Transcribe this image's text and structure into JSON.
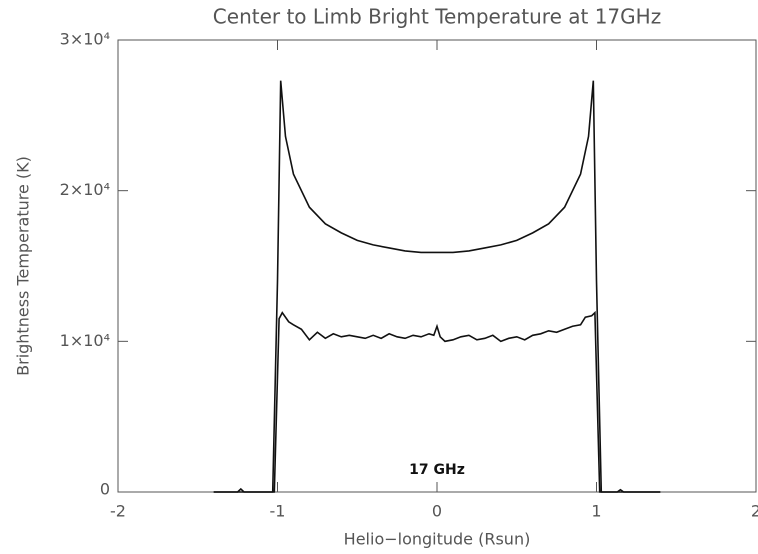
{
  "chart_data": {
    "type": "line",
    "title": "Center to Limb Bright Temperature at 17GHz",
    "xlabel": "Helio−longitude (Rsun)",
    "ylabel": "Brightness Temperature (K)",
    "annotation": "17 GHz",
    "xlim": [
      -2,
      2
    ],
    "ylim": [
      0,
      30000
    ],
    "xticks": [
      -2,
      -1,
      0,
      1,
      2
    ],
    "yticks": [
      0,
      {
        "value": 10000,
        "label": "1×10⁴"
      },
      {
        "value": 20000,
        "label": "2×10⁴"
      },
      {
        "value": 30000,
        "label": "3×10⁴"
      }
    ],
    "grid": false,
    "series": [
      {
        "color": "#111111",
        "x": [
          -1.4,
          -1.05,
          -1.03,
          -1.0,
          -0.98,
          -0.95,
          -0.9,
          -0.8,
          -0.7,
          -0.6,
          -0.5,
          -0.4,
          -0.3,
          -0.2,
          -0.1,
          0,
          0.1,
          0.2,
          0.3,
          0.4,
          0.5,
          0.6,
          0.7,
          0.8,
          0.9,
          0.95,
          0.98,
          1.0,
          1.03,
          1.05,
          1.4
        ],
        "values": [
          0,
          0,
          0,
          14000,
          27300,
          23600,
          21100,
          18900,
          17800,
          17200,
          16700,
          16400,
          16200,
          16000,
          15900,
          15900,
          15900,
          16000,
          16200,
          16400,
          16700,
          17200,
          17800,
          18900,
          21100,
          23600,
          27300,
          14000,
          0,
          0,
          0
        ]
      },
      {
        "color": "#111111",
        "x": [
          -1.4,
          -1.25,
          -1.23,
          -1.21,
          -1.05,
          -1.02,
          -0.99,
          -0.97,
          -0.93,
          -0.9,
          -0.85,
          -0.8,
          -0.75,
          -0.7,
          -0.65,
          -0.6,
          -0.55,
          -0.5,
          -0.45,
          -0.4,
          -0.35,
          -0.3,
          -0.25,
          -0.2,
          -0.15,
          -0.1,
          -0.05,
          -0.02,
          0,
          0.02,
          0.05,
          0.1,
          0.15,
          0.2,
          0.25,
          0.3,
          0.35,
          0.4,
          0.45,
          0.5,
          0.55,
          0.6,
          0.65,
          0.7,
          0.75,
          0.8,
          0.85,
          0.9,
          0.93,
          0.97,
          0.99,
          1.02,
          1.05,
          1.13,
          1.15,
          1.17,
          1.4
        ],
        "values": [
          0,
          0,
          200,
          0,
          0,
          0,
          11500,
          11900,
          11300,
          11100,
          10800,
          10100,
          10600,
          10200,
          10500,
          10300,
          10400,
          10300,
          10200,
          10400,
          10200,
          10500,
          10300,
          10200,
          10400,
          10300,
          10500,
          10400,
          11000,
          10300,
          10000,
          10100,
          10300,
          10400,
          10100,
          10200,
          10400,
          10000,
          10200,
          10300,
          10100,
          10400,
          10500,
          10700,
          10600,
          10800,
          11000,
          11100,
          11600,
          11700,
          11900,
          0,
          0,
          0,
          150,
          0,
          0
        ]
      }
    ]
  }
}
